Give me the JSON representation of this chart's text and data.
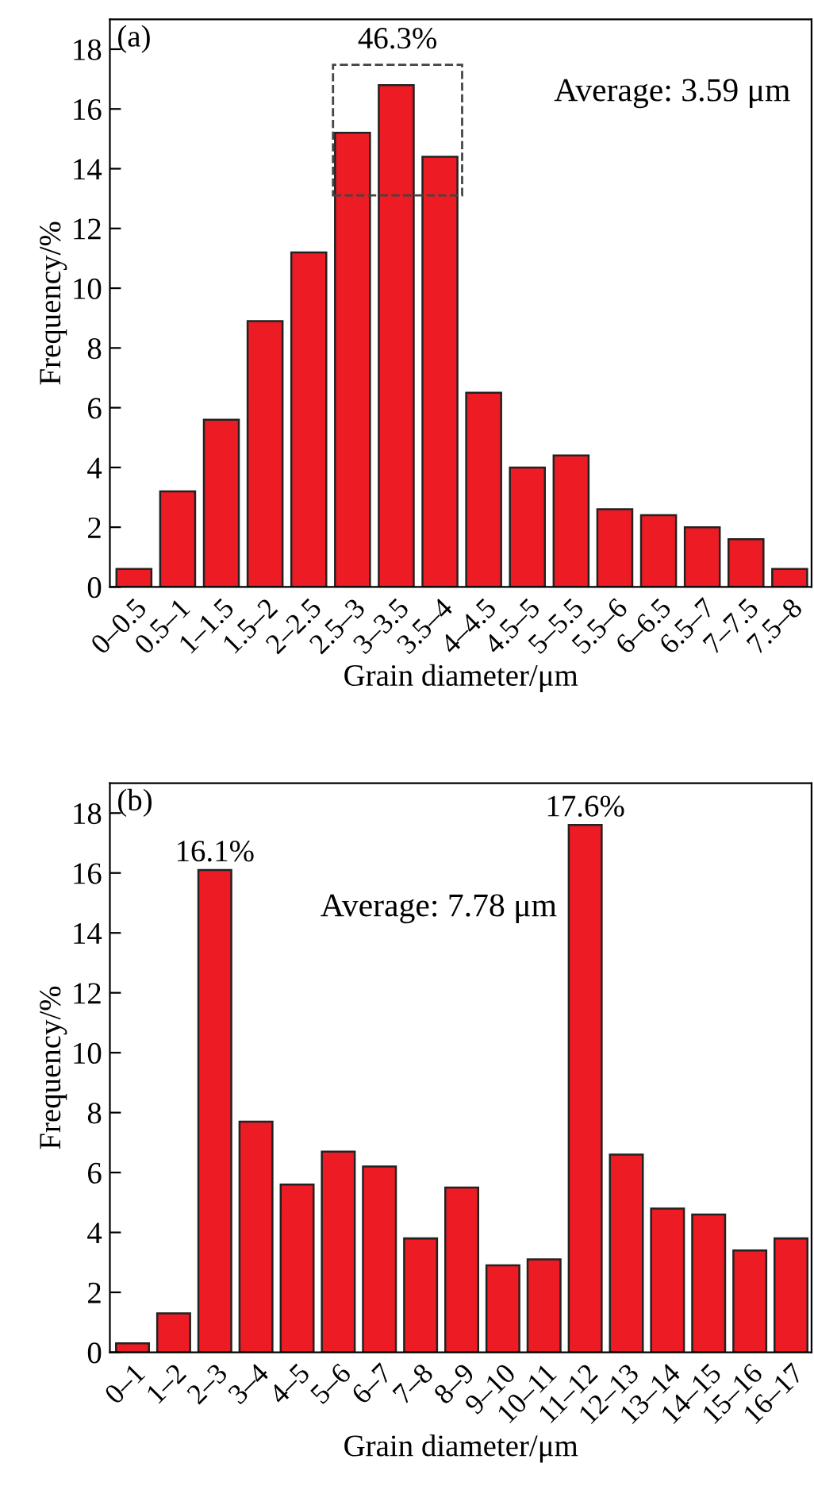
{
  "chart_data": [
    {
      "type": "bar",
      "title": "(a)",
      "xlabel": "Grain diameter/μm",
      "ylabel": "Frequency/%",
      "categories": [
        "0–0.5",
        "0.5–1",
        "1–1.5",
        "1.5–2",
        "2–2.5",
        "2.5–3",
        "3–3.5",
        "3.5–4",
        "4–4.5",
        "4.5–5",
        "5–5.5",
        "5.5–6",
        "6–6.5",
        "6.5–7",
        "7–7.5",
        "7.5–8"
      ],
      "values": [
        0.6,
        3.2,
        5.6,
        8.9,
        11.2,
        15.2,
        16.8,
        14.4,
        6.5,
        4.0,
        4.4,
        2.6,
        2.4,
        2.0,
        1.6,
        0.6
      ],
      "color": "#ed1c24",
      "ylim": [
        0,
        19
      ],
      "yticks": [
        0,
        2,
        4,
        6,
        8,
        10,
        12,
        14,
        16,
        18
      ],
      "grid": false,
      "annotations": [
        "46.3%",
        "Average: 3.59 μm"
      ]
    },
    {
      "type": "bar",
      "title": "(b)",
      "xlabel": "Grain diameter/μm",
      "ylabel": "Frequency/%",
      "categories": [
        "0–1",
        "1–2",
        "2–3",
        "3–4",
        "4–5",
        "5–6",
        "6–7",
        "7–8",
        "8–9",
        "9–10",
        "10–11",
        "11–12",
        "12–13",
        "13–14",
        "14–15",
        "15–16",
        "16–17"
      ],
      "values": [
        0.3,
        1.3,
        16.1,
        7.7,
        5.6,
        6.7,
        6.2,
        3.8,
        5.5,
        2.9,
        3.1,
        17.6,
        6.6,
        4.8,
        4.6,
        3.4,
        3.8
      ],
      "value_labels": [
        null,
        null,
        "16.1%",
        null,
        null,
        null,
        null,
        null,
        null,
        null,
        null,
        "17.6%",
        null,
        null,
        null,
        null,
        null
      ],
      "color": "#ed1c24",
      "ylim": [
        0,
        19
      ],
      "yticks": [
        0,
        2,
        4,
        6,
        8,
        10,
        12,
        14,
        16,
        18
      ],
      "grid": false,
      "annotations": [
        "Average: 7.78 μm"
      ]
    }
  ]
}
